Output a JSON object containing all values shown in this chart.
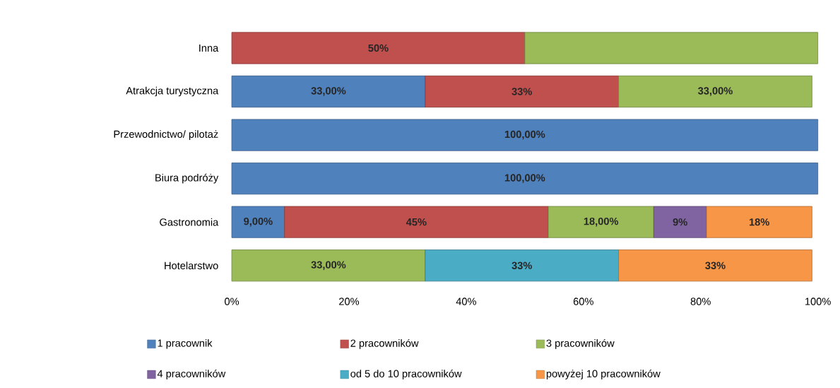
{
  "chart_data": {
    "type": "bar",
    "orientation": "horizontal",
    "stacked": true,
    "categories": [
      "Inna",
      "Atrakcja turystyczna",
      "Przewodnictwo/ pilotaż",
      "Biura podróży",
      "Gastronomia",
      "Hotelarstwo"
    ],
    "series": [
      {
        "name": "1 pracownik",
        "color": "#4f81bd",
        "values": [
          null,
          33,
          100,
          100,
          9,
          null
        ],
        "value_labels": [
          null,
          "33,00%",
          "100,00%",
          "100,00%",
          "9,00%",
          null
        ]
      },
      {
        "name": "2 pracowników",
        "color": "#c0504d",
        "values": [
          50,
          33,
          null,
          null,
          45,
          null
        ],
        "value_labels": [
          "50%",
          "33%",
          null,
          null,
          "45%",
          null
        ]
      },
      {
        "name": "3 pracowników",
        "color": "#9bbb59",
        "values": [
          50,
          33,
          null,
          null,
          18,
          33
        ],
        "value_labels": [
          null,
          "33,00%",
          null,
          null,
          "18,00%",
          "33,00%"
        ]
      },
      {
        "name": "4 pracowników",
        "color": "#8064a2",
        "values": [
          null,
          null,
          null,
          null,
          9,
          null
        ],
        "value_labels": [
          null,
          null,
          null,
          null,
          "9%",
          null
        ]
      },
      {
        "name": "od 5 do 10 pracowników",
        "color": "#4bacc6",
        "values": [
          null,
          null,
          null,
          null,
          null,
          33
        ],
        "value_labels": [
          null,
          null,
          null,
          null,
          null,
          "33%"
        ]
      },
      {
        "name": "powyżej 10 pracowników",
        "color": "#f79646",
        "values": [
          null,
          null,
          null,
          null,
          18,
          33
        ],
        "value_labels": [
          null,
          null,
          null,
          null,
          "18%",
          "33%"
        ]
      }
    ],
    "xlim": [
      0,
      100
    ],
    "xticks": [
      {
        "value": 0,
        "label": "0%"
      },
      {
        "value": 20,
        "label": "20%"
      },
      {
        "value": 40,
        "label": "40%"
      },
      {
        "value": 60,
        "label": "60%"
      },
      {
        "value": 80,
        "label": "80%"
      },
      {
        "value": 100,
        "label": "100%"
      }
    ],
    "legend": "bottom"
  }
}
